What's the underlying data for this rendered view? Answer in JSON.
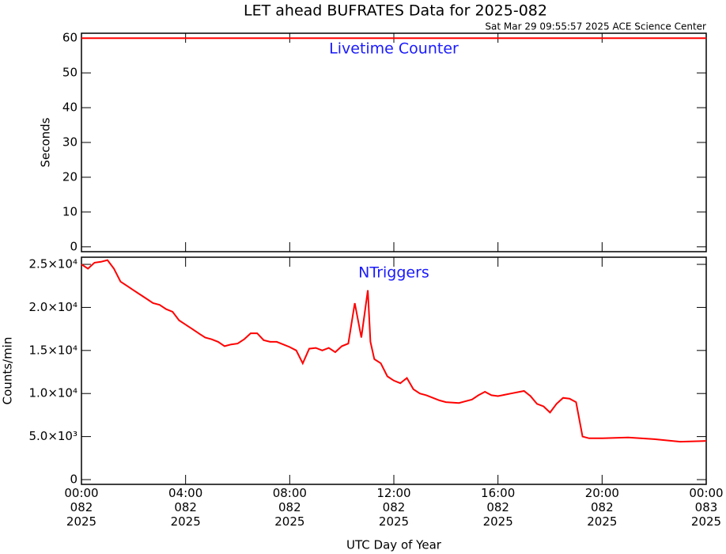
{
  "title": "LET ahead BUFRATES Data for 2025-082",
  "subtitle": "Sat Mar 29 09:55:57 2025 ACE Science Center",
  "xlabel": "UTC Day of Year",
  "chart_data": [
    {
      "type": "line",
      "annotation": "Livetime Counter",
      "ylabel": "Seconds",
      "color": "#ff0000",
      "x": [
        0,
        24
      ],
      "values": [
        60,
        60
      ],
      "xlim": [
        0,
        24
      ],
      "xticks": [
        0,
        4,
        8,
        12,
        16,
        20,
        24
      ],
      "ylim": [
        -1.4,
        61.4
      ],
      "yticks": [
        0,
        10,
        20,
        30,
        40,
        50,
        60
      ]
    },
    {
      "type": "line",
      "annotation": "NTriggers",
      "ylabel": "Counts/min",
      "color": "#ff0000",
      "x": [
        0,
        0.25,
        0.5,
        0.75,
        1.0,
        1.25,
        1.5,
        1.75,
        2.0,
        2.25,
        2.5,
        2.75,
        3.0,
        3.25,
        3.5,
        3.75,
        4.0,
        4.25,
        4.5,
        4.75,
        5.0,
        5.25,
        5.5,
        5.75,
        6.0,
        6.25,
        6.5,
        6.75,
        7.0,
        7.25,
        7.5,
        7.75,
        8.0,
        8.25,
        8.5,
        8.75,
        9.0,
        9.25,
        9.5,
        9.75,
        10.0,
        10.25,
        10.5,
        10.75,
        11.0,
        11.1,
        11.25,
        11.5,
        11.75,
        12.0,
        12.25,
        12.5,
        12.75,
        13.0,
        13.25,
        13.5,
        13.75,
        14.0,
        14.5,
        15.0,
        15.25,
        15.5,
        15.75,
        16.0,
        16.5,
        17.0,
        17.25,
        17.5,
        17.75,
        18.0,
        18.25,
        18.5,
        18.75,
        19.0,
        19.25,
        19.5,
        20.0,
        21.0,
        22.0,
        23.0,
        24.0
      ],
      "values": [
        25000,
        24500,
        25200,
        25300,
        25500,
        24500,
        23000,
        22500,
        22000,
        21500,
        21000,
        20500,
        20300,
        19800,
        19500,
        18500,
        18000,
        17500,
        17000,
        16500,
        16300,
        16000,
        15500,
        15700,
        15800,
        16300,
        17000,
        17000,
        16200,
        16000,
        16000,
        15700,
        15400,
        15000,
        13500,
        15200,
        15300,
        15000,
        15300,
        14800,
        15500,
        15800,
        20500,
        16500,
        22000,
        16000,
        14000,
        13500,
        12000,
        11500,
        11200,
        11800,
        10500,
        10000,
        9800,
        9500,
        9200,
        9000,
        8900,
        9300,
        9800,
        10200,
        9800,
        9700,
        10000,
        10300,
        9700,
        8800,
        8500,
        7800,
        8800,
        9500,
        9400,
        9000,
        5000,
        4800,
        4800,
        4900,
        4700,
        4400,
        4500
      ],
      "xlim": [
        0,
        24
      ],
      "xticks": [
        {
          "value": 0,
          "label": "00:00\n082\n2025"
        },
        {
          "value": 4,
          "label": "04:00\n082\n2025"
        },
        {
          "value": 8,
          "label": "08:00\n082\n2025"
        },
        {
          "value": 12,
          "label": "12:00\n082\n2025"
        },
        {
          "value": 16,
          "label": "16:00\n082\n2025"
        },
        {
          "value": 20,
          "label": "20:00\n082\n2025"
        },
        {
          "value": 24,
          "label": "00:00\n083\n2025"
        }
      ],
      "ylim": [
        -550,
        25830
      ],
      "yticks": [
        0,
        {
          "value": 5000,
          "label": "5.0×10³"
        },
        {
          "value": 10000,
          "label": "1.0×10⁴"
        },
        {
          "value": 15000,
          "label": "1.5×10⁴"
        },
        {
          "value": 20000,
          "label": "2.0×10⁴"
        },
        {
          "value": 25000,
          "label": "2.5×10⁴"
        }
      ]
    }
  ]
}
